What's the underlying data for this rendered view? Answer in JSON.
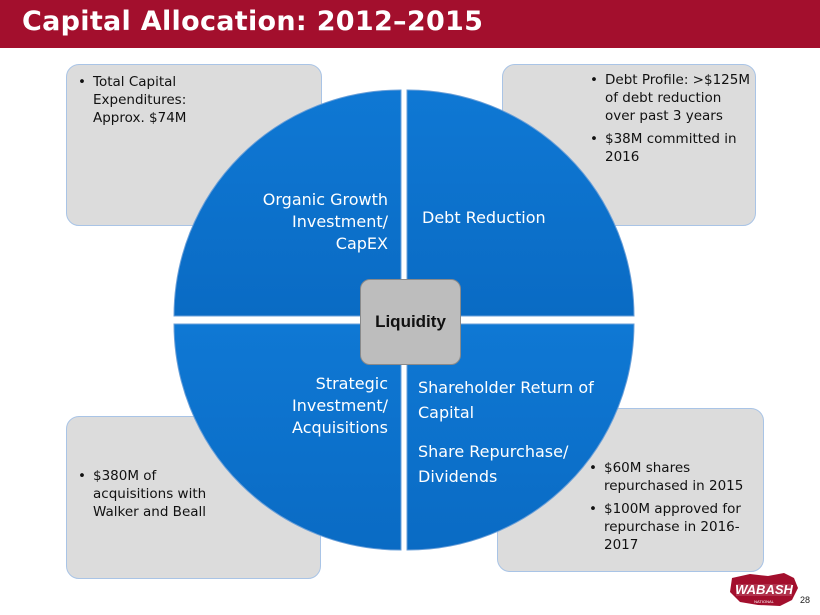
{
  "header": {
    "title": "Capital Allocation: 2012–2015"
  },
  "quadrants": {
    "top_left": {
      "label_lines": [
        "Organic Growth",
        "Investment/",
        "CapEX"
      ]
    },
    "top_right": {
      "label_lines": [
        "Debt Reduction"
      ]
    },
    "bottom_left": {
      "label_lines": [
        "Strategic",
        "Investment/",
        "Acquisitions"
      ]
    },
    "bottom_right": {
      "label_lines": [
        "Shareholder Return of",
        "Capital",
        "",
        "Share Repurchase/",
        "Dividends"
      ]
    }
  },
  "center": {
    "label": "Liquidity"
  },
  "boxes": {
    "top_left": {
      "bullets": [
        "Total Capital Expenditures: Approx. $74M"
      ]
    },
    "top_right": {
      "bullets": [
        "Debt Profile: >$125M of debt reduction over past 3 years",
        "$38M committed in 2016"
      ]
    },
    "bottom_left": {
      "bullets": [
        "$380M of acquisitions with Walker and Beall"
      ]
    },
    "bottom_right": {
      "bullets": [
        "$60M shares repurchased in 2015",
        " $100M approved for repurchase in 2016-2017"
      ]
    }
  },
  "footer": {
    "page_number": "28",
    "logo_text": "WABASH",
    "logo_subtext": "NATIONAL"
  },
  "colors": {
    "title_bar": "#a30f2d",
    "quadrant_fill": "#0b72cc",
    "box_fill": "#dcdcdc",
    "center_fill": "#bdbdbd"
  }
}
